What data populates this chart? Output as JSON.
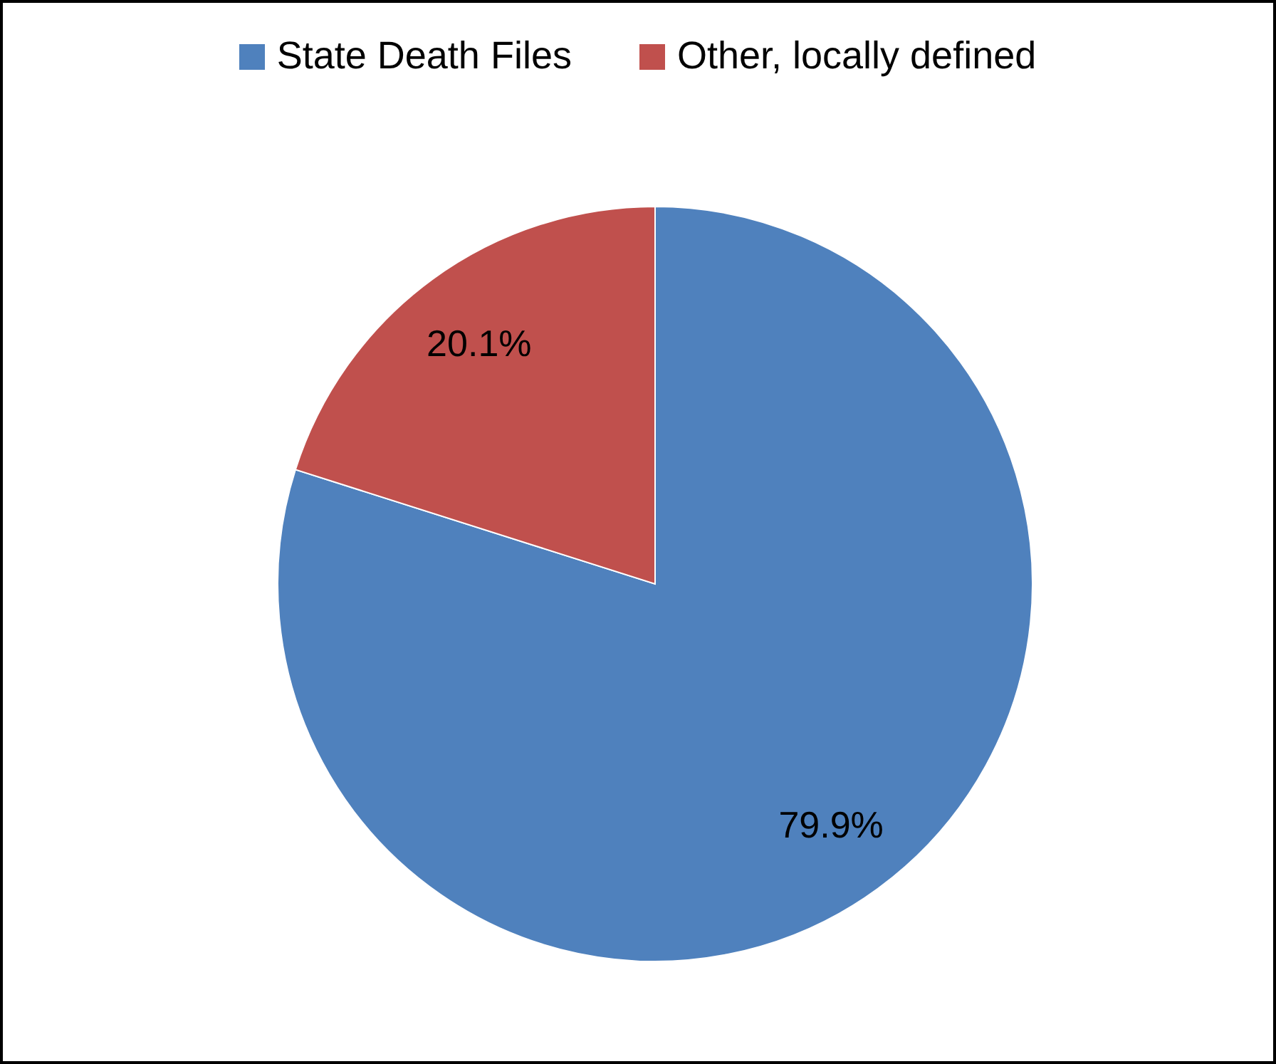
{
  "chart_data": {
    "type": "pie",
    "categories": [
      "State Death Files",
      "Other, locally defined"
    ],
    "values": [
      79.9,
      20.1
    ],
    "colors": [
      "#4f81bd",
      "#c0504d"
    ],
    "value_labels": [
      "79.9%",
      "20.1%"
    ],
    "legend": "top"
  }
}
